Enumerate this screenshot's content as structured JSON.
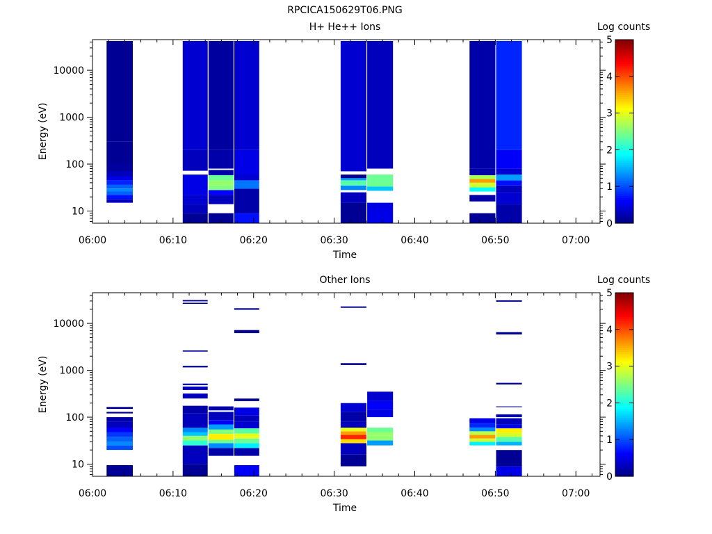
{
  "figure_title": "RPCICA150629T06.PNG",
  "chart_data": [
    {
      "type": "heatmap",
      "title": "H+ He++ Ions",
      "xlabel": "Time",
      "ylabel": "Energy (eV)",
      "y_scale": "log",
      "ylim": [
        5.5,
        45000
      ],
      "x_ticks": [
        "06:00",
        "06:10",
        "06:20",
        "06:30",
        "06:40",
        "06:50",
        "07:00"
      ],
      "x_range_minutes": [
        0,
        63
      ],
      "y_ticks": [
        "10",
        "100",
        "1000",
        "10000"
      ],
      "y_tick_values": [
        10,
        100,
        1000,
        10000
      ],
      "colorbar": {
        "label": "Log counts",
        "min": 0,
        "max": 5,
        "ticks": [
          "0",
          "1",
          "2",
          "3",
          "4",
          "5"
        ],
        "colormap": "jet"
      },
      "columns": [
        {
          "t0": 1.75,
          "t1": 5.0,
          "emin": 15,
          "emax": 42000,
          "cells": [
            [
              15,
              18,
              0.3
            ],
            [
              18,
              22,
              0.7
            ],
            [
              22,
              26,
              1.1
            ],
            [
              26,
              30,
              1.3
            ],
            [
              30,
              36,
              1.1
            ],
            [
              36,
              45,
              0.8
            ],
            [
              45,
              55,
              0.5
            ],
            [
              55,
              70,
              0.3
            ],
            [
              70,
              100,
              0.15
            ],
            [
              100,
              300,
              0.1
            ],
            [
              300,
              42000,
              0.1
            ]
          ]
        },
        {
          "t0": 11.2,
          "t1": 14.3,
          "emin": 5.5,
          "emax": 42000,
          "cells": [
            [
              5.5,
              9,
              0.1
            ],
            [
              9,
              14,
              0.3
            ],
            [
              14,
              22,
              0.4
            ],
            [
              22,
              60,
              0.5
            ],
            [
              72,
              200,
              0.3
            ],
            [
              200,
              42000,
              0.4
            ]
          ]
        },
        {
          "t0": 14.4,
          "t1": 17.5,
          "emin": 5.5,
          "emax": 42000,
          "cells": [
            [
              5.5,
              9,
              0.1
            ],
            [
              14,
              22,
              0.3
            ],
            [
              22,
              28,
              0.6
            ],
            [
              28,
              35,
              2.5
            ],
            [
              35,
              45,
              2.6
            ],
            [
              45,
              58,
              2.4
            ],
            [
              58,
              75,
              0.2
            ],
            [
              80,
              200,
              0.2
            ],
            [
              200,
              42000,
              0.15
            ]
          ]
        },
        {
          "t0": 17.6,
          "t1": 20.7,
          "emin": 5.5,
          "emax": 42000,
          "cells": [
            [
              5.5,
              9,
              0.7
            ],
            [
              9,
              30,
              0.2
            ],
            [
              30,
              45,
              1.2
            ],
            [
              45,
              60,
              0.4
            ],
            [
              60,
              200,
              0.5
            ],
            [
              200,
              42000,
              0.4
            ]
          ]
        },
        {
          "t0": 30.8,
          "t1": 34.0,
          "emin": 5.5,
          "emax": 42000,
          "cells": [
            [
              5.5,
              15,
              0.1
            ],
            [
              15,
              25,
              0.3
            ],
            [
              28,
              35,
              1.3
            ],
            [
              35,
              45,
              2.3
            ],
            [
              45,
              50,
              1.4
            ],
            [
              50,
              60,
              0.1
            ],
            [
              70,
              42000,
              0.4
            ]
          ]
        },
        {
          "t0": 34.1,
          "t1": 37.3,
          "emin": 5.5,
          "emax": 42000,
          "cells": [
            [
              5.5,
              15,
              0.5
            ],
            [
              27,
              33,
              1.6
            ],
            [
              33,
              60,
              2.4
            ],
            [
              80,
              42000,
              0.3
            ]
          ]
        },
        {
          "t0": 46.8,
          "t1": 50.0,
          "emin": 5.5,
          "emax": 42000,
          "cells": [
            [
              5.5,
              9,
              0.1
            ],
            [
              16,
              22,
              0.2
            ],
            [
              26,
              32,
              1.9
            ],
            [
              32,
              40,
              2.9
            ],
            [
              40,
              48,
              3.6
            ],
            [
              48,
              58,
              2.7
            ],
            [
              58,
              80,
              0.2
            ],
            [
              80,
              42000,
              0.2
            ]
          ]
        },
        {
          "t0": 50.1,
          "t1": 53.3,
          "emin": 5.5,
          "emax": 42000,
          "cells": [
            [
              5.5,
              14,
              0.2
            ],
            [
              14,
              25,
              0.4
            ],
            [
              25,
              35,
              0.3
            ],
            [
              35,
              45,
              0.7
            ],
            [
              45,
              60,
              1.4
            ],
            [
              60,
              80,
              0.4
            ],
            [
              80,
              200,
              0.6
            ],
            [
              200,
              42000,
              0.8
            ]
          ]
        }
      ]
    },
    {
      "type": "heatmap",
      "title": "Other Ions",
      "xlabel": "Time",
      "ylabel": "Energy (eV)",
      "y_scale": "log",
      "ylim": [
        5.5,
        45000
      ],
      "x_ticks": [
        "06:00",
        "06:10",
        "06:20",
        "06:30",
        "06:40",
        "06:50",
        "07:00"
      ],
      "x_range_minutes": [
        0,
        63
      ],
      "y_ticks": [
        "10",
        "100",
        "1000",
        "10000"
      ],
      "y_tick_values": [
        10,
        100,
        1000,
        10000
      ],
      "colorbar": {
        "label": "Log counts",
        "min": 0,
        "max": 5,
        "ticks": [
          "0",
          "1",
          "2",
          "3",
          "4",
          "5"
        ],
        "colormap": "jet"
      },
      "columns": [
        {
          "t0": 1.75,
          "t1": 5.0,
          "emin": 5.5,
          "emax": 170,
          "cells": [
            [
              5.5,
              9.5,
              0.1
            ],
            [
              20,
              25,
              1.0
            ],
            [
              25,
              30,
              1.3
            ],
            [
              30,
              38,
              1.1
            ],
            [
              38,
              48,
              0.9
            ],
            [
              48,
              60,
              0.6
            ],
            [
              60,
              80,
              0.3
            ],
            [
              80,
              100,
              0.2
            ],
            [
              120,
              130,
              0.1
            ],
            [
              150,
              165,
              0.1
            ]
          ]
        },
        {
          "t0": 11.2,
          "t1": 14.3,
          "emin": 5.5,
          "emax": 32000,
          "cells": [
            [
              5.5,
              10,
              0.1
            ],
            [
              10,
              25,
              0.3
            ],
            [
              25,
              32,
              2.1
            ],
            [
              32,
              40,
              2.6
            ],
            [
              40,
              48,
              1.6
            ],
            [
              48,
              60,
              1.3
            ],
            [
              60,
              120,
              0.3
            ],
            [
              120,
              175,
              0.2
            ],
            [
              250,
              320,
              0.3
            ],
            [
              380,
              450,
              0.3
            ],
            [
              480,
              520,
              0.2
            ],
            [
              1150,
              1250,
              0.1
            ],
            [
              2500,
              2650,
              0.1
            ],
            [
              26000,
              27500,
              0.1
            ],
            [
              29500,
              31500,
              0.1
            ]
          ]
        },
        {
          "t0": 14.4,
          "t1": 17.5,
          "emin": 15,
          "emax": 170,
          "cells": [
            [
              15,
              22,
              0.2
            ],
            [
              22,
              28,
              1.3
            ],
            [
              28,
              33,
              2.4
            ],
            [
              33,
              44,
              3.2
            ],
            [
              44,
              55,
              2.5
            ],
            [
              55,
              70,
              1.4
            ],
            [
              70,
              85,
              0.6
            ],
            [
              85,
              130,
              0.3
            ],
            [
              140,
              170,
              0.2
            ]
          ]
        },
        {
          "t0": 17.6,
          "t1": 20.7,
          "emin": 5.5,
          "emax": 22000,
          "cells": [
            [
              5.5,
              9.5,
              0.6
            ],
            [
              15,
              22,
              0.2
            ],
            [
              22,
              28,
              1.8
            ],
            [
              28,
              35,
              2.4
            ],
            [
              35,
              45,
              3.0
            ],
            [
              45,
              58,
              2.3
            ],
            [
              58,
              80,
              0.4
            ],
            [
              80,
              110,
              0.3
            ],
            [
              110,
              160,
              0.5
            ],
            [
              220,
              250,
              0.1
            ],
            [
              6200,
              7200,
              0.1
            ],
            [
              19500,
              21000,
              0.1
            ]
          ]
        },
        {
          "t0": 30.8,
          "t1": 34.0,
          "emin": 9,
          "emax": 24000,
          "cells": [
            [
              9,
              16,
              0.1
            ],
            [
              16,
              28,
              0.3
            ],
            [
              28,
              34,
              3.3
            ],
            [
              34,
              42,
              4.2
            ],
            [
              42,
              50,
              3.6
            ],
            [
              50,
              60,
              3.0
            ],
            [
              60,
              80,
              0.3
            ],
            [
              80,
              130,
              0.2
            ],
            [
              130,
              200,
              0.4
            ],
            [
              1300,
              1420,
              0.1
            ],
            [
              21500,
              23000,
              0.1
            ]
          ]
        },
        {
          "t0": 34.1,
          "t1": 37.3,
          "emin": 25,
          "emax": 350,
          "cells": [
            [
              25,
              32,
              1.4
            ],
            [
              32,
              40,
              2.6
            ],
            [
              40,
              48,
              2.6
            ],
            [
              48,
              60,
              2.4
            ],
            [
              100,
              150,
              0.5
            ],
            [
              150,
              220,
              0.6
            ],
            [
              220,
              350,
              0.4
            ]
          ]
        },
        {
          "t0": 46.8,
          "t1": 50.0,
          "emin": 25,
          "emax": 95,
          "cells": [
            [
              25,
              30,
              1.8
            ],
            [
              30,
              35,
              2.9
            ],
            [
              35,
              42,
              3.6
            ],
            [
              42,
              50,
              2.8
            ],
            [
              50,
              60,
              1.3
            ],
            [
              60,
              75,
              0.8
            ],
            [
              75,
              95,
              0.5
            ]
          ]
        },
        {
          "t0": 50.1,
          "t1": 53.3,
          "emin": 5.5,
          "emax": 32000,
          "cells": [
            [
              5.5,
              9,
              0.5
            ],
            [
              9,
              20,
              0.1
            ],
            [
              25,
              30,
              1.5
            ],
            [
              30,
              38,
              2.3
            ],
            [
              38,
              46,
              2.9
            ],
            [
              46,
              58,
              3.2
            ],
            [
              58,
              70,
              0.5
            ],
            [
              70,
              95,
              0.3
            ],
            [
              100,
              115,
              0.2
            ],
            [
              165,
              170,
              0.1
            ],
            [
              500,
              540,
              0.1
            ],
            [
              5800,
              6500,
              0.1
            ],
            [
              29000,
              31000,
              0.1
            ]
          ]
        }
      ]
    }
  ]
}
